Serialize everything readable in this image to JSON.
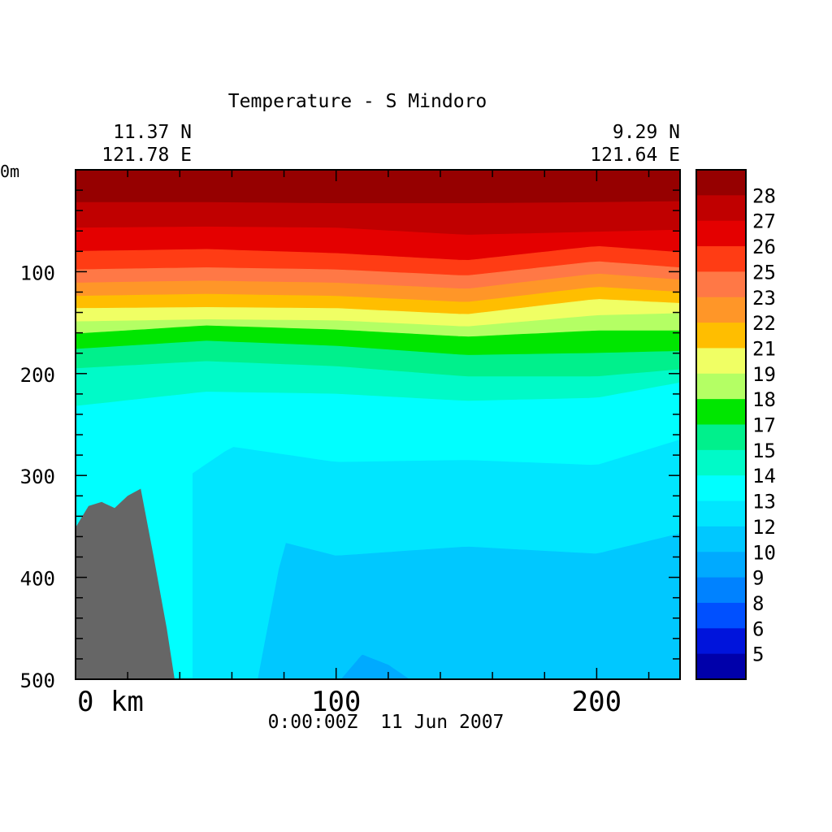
{
  "chart_data": {
    "type": "heatmap",
    "title": "Temperature - S Mindoro",
    "start_location": {
      "lat": "11.37 N",
      "lon": "121.78 E"
    },
    "end_location": {
      "lat": "9.29 N",
      "lon": "121.64 E"
    },
    "timestamp": "0:00:00Z  11 Jun 2007",
    "x_axis": {
      "unit": "km",
      "range": [
        0,
        232
      ],
      "ticks": [
        0,
        100,
        200
      ],
      "tick_labels": [
        "0 km",
        "100",
        "200"
      ]
    },
    "y_axis": {
      "unit": "m",
      "range": [
        0,
        500
      ],
      "inverted": true,
      "ticks": [
        0,
        100,
        200,
        300,
        400,
        500
      ],
      "tick_labels": [
        "0m",
        "100",
        "200",
        "300",
        "400",
        "500"
      ]
    },
    "colorbar": {
      "labels": [
        "28",
        "27",
        "26",
        "25",
        "23",
        "22",
        "21",
        "19",
        "18",
        "17",
        "15",
        "14",
        "13",
        "12",
        "10",
        "9",
        "8",
        "6",
        "5"
      ],
      "colors": [
        "#960000",
        "#c00000",
        "#e40000",
        "#ff3c14",
        "#ff7846",
        "#ff9628",
        "#ffbe00",
        "#f0ff64",
        "#b4ff64",
        "#00e600",
        "#00f08c",
        "#00fac8",
        "#00ffff",
        "#00e6ff",
        "#00c8ff",
        "#00aaff",
        "#0082ff",
        "#0050ff",
        "#0014dc",
        "#0000aa"
      ]
    },
    "isotherms_depth_m": [
      {
        "level": 28,
        "x": [
          0,
          50,
          100,
          150,
          200,
          232
        ],
        "depth": [
          32,
          32,
          33,
          33,
          32,
          31
        ]
      },
      {
        "level": 27,
        "x": [
          0,
          50,
          100,
          150,
          200,
          232
        ],
        "depth": [
          57,
          56,
          57,
          64,
          61,
          59
        ]
      },
      {
        "level": 26,
        "x": [
          0,
          50,
          100,
          150,
          200,
          232
        ],
        "depth": [
          80,
          78,
          82,
          89,
          75,
          81
        ]
      },
      {
        "level": 25,
        "x": [
          0,
          50,
          100,
          150,
          200,
          232
        ],
        "depth": [
          98,
          96,
          98,
          104,
          90,
          96
        ]
      },
      {
        "level": 23,
        "x": [
          0,
          50,
          100,
          150,
          200,
          232
        ],
        "depth": [
          111,
          109,
          111,
          117,
          102,
          108
        ]
      },
      {
        "level": 22,
        "x": [
          0,
          50,
          100,
          150,
          200,
          232
        ],
        "depth": [
          124,
          122,
          124,
          130,
          115,
          120
        ]
      },
      {
        "level": 21,
        "x": [
          0,
          50,
          100,
          150,
          200,
          232
        ],
        "depth": [
          136,
          135,
          136,
          142,
          127,
          131
        ]
      },
      {
        "level": 19,
        "x": [
          0,
          50,
          100,
          150,
          200,
          232
        ],
        "depth": [
          149,
          147,
          148,
          154,
          143,
          141
        ]
      },
      {
        "level": 18,
        "x": [
          0,
          50,
          100,
          150,
          200,
          232
        ],
        "depth": [
          161,
          153,
          157,
          164,
          158,
          158
        ]
      },
      {
        "level": 17,
        "x": [
          0,
          50,
          100,
          150,
          200,
          232
        ],
        "depth": [
          176,
          168,
          173,
          182,
          180,
          178
        ]
      },
      {
        "level": 15,
        "x": [
          0,
          50,
          100,
          150,
          200,
          232
        ],
        "depth": [
          195,
          188,
          193,
          203,
          203,
          196
        ]
      },
      {
        "level": 14,
        "x": [
          0,
          50,
          100,
          150,
          200,
          232
        ],
        "depth": [
          232,
          218,
          220,
          227,
          224,
          209
        ]
      },
      {
        "level": 13,
        "x": [
          45,
          60,
          100,
          150,
          200,
          232
        ],
        "depth": [
          298,
          272,
          287,
          285,
          290,
          265
        ]
      },
      {
        "level": 12,
        "x": [
          70,
          80,
          100,
          150,
          200,
          232
        ],
        "depth": [
          500,
          366,
          379,
          370,
          377,
          357
        ]
      },
      {
        "level": 10,
        "x": [
          102,
          110,
          120,
          128
        ],
        "depth": [
          500,
          476,
          486,
          500
        ]
      }
    ],
    "bathymetry_depth_m": {
      "x": [
        0,
        5,
        10,
        15,
        20,
        25,
        30,
        35,
        38
      ],
      "depth": [
        351,
        330,
        326,
        332,
        320,
        313,
        380,
        450,
        500
      ]
    }
  }
}
